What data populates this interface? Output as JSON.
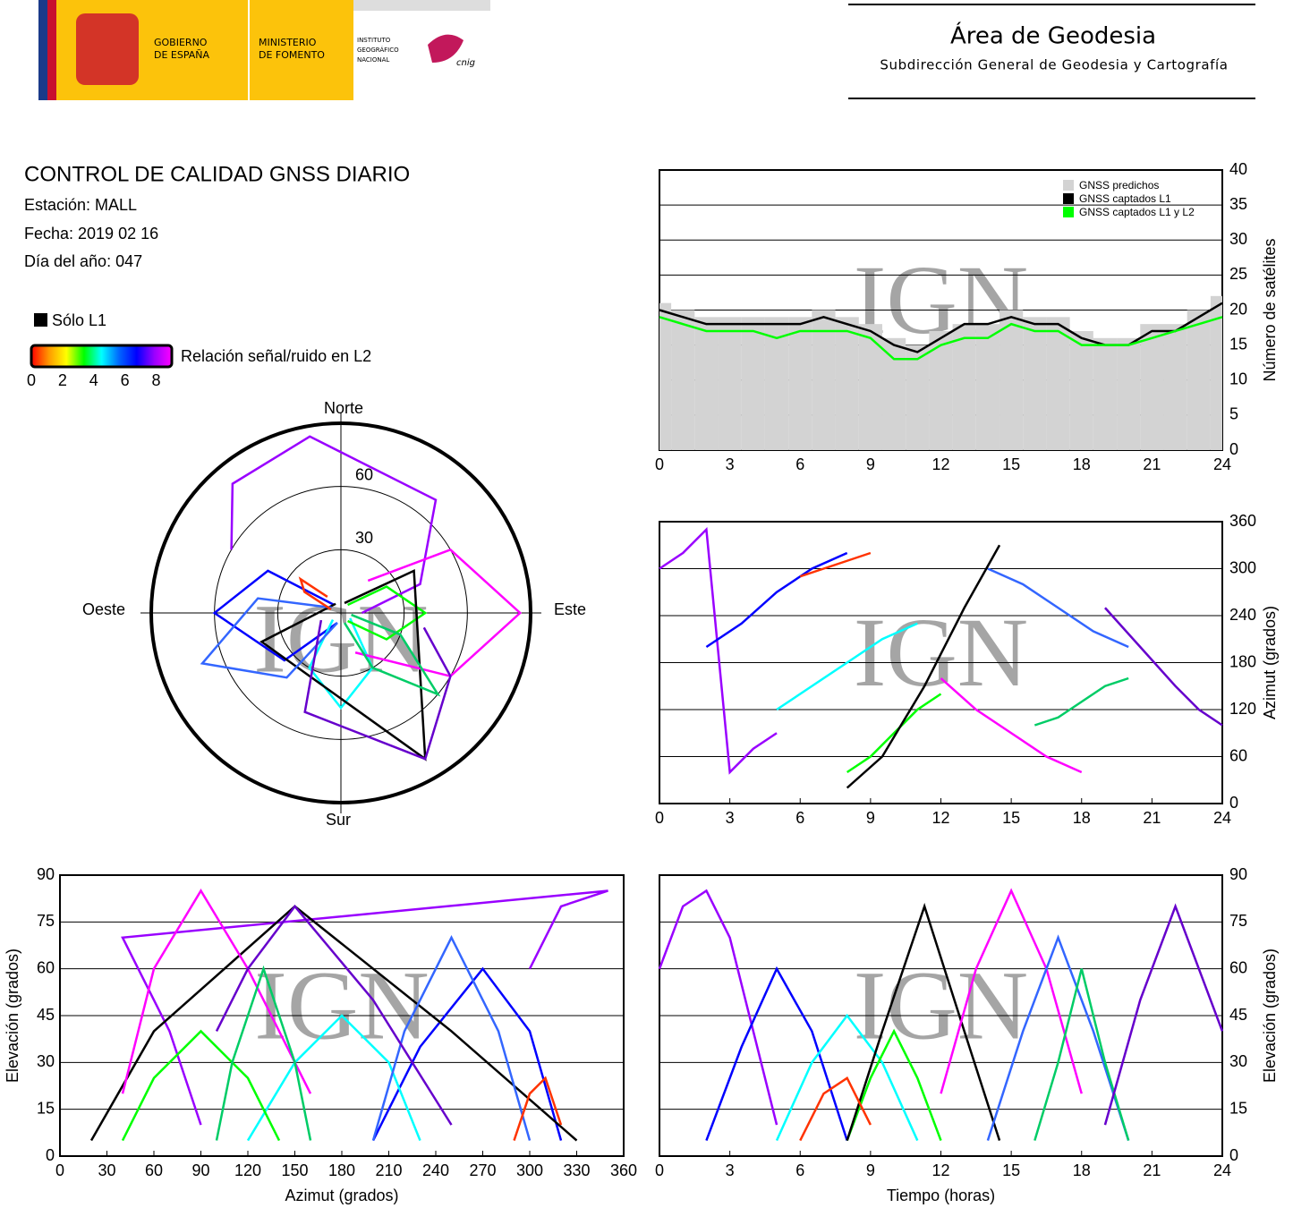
{
  "header": {
    "gov_line1": "GOBIERNO",
    "gov_line2": "DE ESPAÑA",
    "min_line1": "MINISTERIO",
    "min_line2": "DE FOMENTO",
    "ign_line1": "INSTITUTO",
    "ign_line2": "GEOGRÁFICO",
    "ign_line3": "NACIONAL",
    "ign_logo": "cnig",
    "area": "Área de Geodesia",
    "subdireccion": "Subdirección General de Geodesia y Cartografía"
  },
  "info": {
    "title": "CONTROL DE CALIDAD GNSS DIARIO",
    "station": "Estación: MALL",
    "date": "Fecha: 2019 02 16",
    "doy": "Día del año: 047"
  },
  "legend": {
    "l1_only": "Sólo L1",
    "l1_only_color": "#000000",
    "colorbar_label": "Relación señal/ruido en L2",
    "colorbar_range": [
      0,
      9
    ],
    "colorbar_ticks": [
      0,
      2,
      4,
      6,
      8
    ],
    "colorbar_colors": [
      "#ff0000",
      "#ff9900",
      "#ffff00",
      "#00ff00",
      "#00ffff",
      "#0066ff",
      "#0000ff",
      "#9900ff",
      "#ff00ff"
    ]
  },
  "watermark": "IGN",
  "satellite_passes": [
    {
      "color": "#9900ff",
      "t": [
        0,
        1,
        2,
        3,
        4,
        5
      ],
      "az": [
        300,
        320,
        350,
        40,
        70,
        90
      ],
      "el": [
        60,
        80,
        85,
        70,
        40,
        10
      ]
    },
    {
      "color": "#0000ff",
      "t": [
        2,
        3.5,
        5,
        6.5,
        8
      ],
      "az": [
        200,
        230,
        270,
        300,
        320
      ],
      "el": [
        5,
        35,
        60,
        40,
        5
      ]
    },
    {
      "color": "#00ffff",
      "t": [
        5,
        6.5,
        8,
        9.5,
        11
      ],
      "az": [
        120,
        150,
        180,
        210,
        230
      ],
      "el": [
        5,
        30,
        45,
        30,
        5
      ]
    },
    {
      "color": "#00ff00",
      "t": [
        8,
        9,
        10,
        11,
        12
      ],
      "az": [
        40,
        60,
        90,
        120,
        140
      ],
      "el": [
        5,
        25,
        40,
        25,
        5
      ]
    },
    {
      "color": "#000000",
      "t": [
        8,
        9.5,
        11.3,
        13,
        14.5
      ],
      "az": [
        20,
        60,
        150,
        250,
        330
      ],
      "el": [
        5,
        40,
        80,
        40,
        5
      ]
    },
    {
      "color": "#ff00ff",
      "t": [
        12,
        13.5,
        15,
        16.5,
        18
      ],
      "az": [
        160,
        120,
        90,
        60,
        40
      ],
      "el": [
        20,
        60,
        85,
        60,
        20
      ]
    },
    {
      "color": "#3366ff",
      "t": [
        14,
        15.5,
        17,
        18.5,
        20
      ],
      "az": [
        300,
        280,
        250,
        220,
        200
      ],
      "el": [
        5,
        40,
        70,
        40,
        5
      ]
    },
    {
      "color": "#00cc66",
      "t": [
        16,
        17,
        18,
        19,
        20
      ],
      "az": [
        100,
        110,
        130,
        150,
        160
      ],
      "el": [
        5,
        30,
        60,
        30,
        5
      ]
    },
    {
      "color": "#6600cc",
      "t": [
        19,
        20.5,
        22,
        23,
        24
      ],
      "az": [
        250,
        200,
        150,
        120,
        100
      ],
      "el": [
        10,
        50,
        80,
        60,
        40
      ]
    },
    {
      "color": "#ff3300",
      "t": [
        6,
        7,
        8,
        9
      ],
      "az": [
        290,
        300,
        310,
        320
      ],
      "el": [
        5,
        20,
        25,
        10
      ]
    }
  ],
  "chart_data": [
    {
      "type": "count",
      "ylabel": "Número de satélites",
      "xlim": [
        0,
        24
      ],
      "xticks": [
        0,
        3,
        6,
        9,
        12,
        15,
        18,
        21,
        24
      ],
      "ylim": [
        0,
        40
      ],
      "yticks": [
        0,
        5,
        10,
        15,
        20,
        25,
        30,
        35,
        40
      ],
      "grid": "y",
      "legend": "top-right",
      "x": [
        0,
        1,
        2,
        3,
        4,
        5,
        6,
        7,
        8,
        9,
        10,
        11,
        12,
        13,
        14,
        15,
        16,
        17,
        18,
        19,
        20,
        21,
        22,
        23,
        24
      ],
      "series": [
        {
          "name": "GNSS predichos",
          "color": "#d3d3d3",
          "values": [
            21,
            20,
            19,
            19,
            19,
            19,
            19,
            20,
            19,
            18,
            16,
            15,
            17,
            18,
            18,
            20,
            19,
            19,
            17,
            16,
            16,
            18,
            18,
            20,
            22
          ]
        },
        {
          "name": "GNSS captados L1",
          "color": "#000000",
          "values": [
            20,
            19,
            18,
            18,
            18,
            18,
            18,
            19,
            18,
            17,
            15,
            14,
            16,
            18,
            18,
            19,
            18,
            18,
            16,
            15,
            15,
            17,
            17,
            19,
            21
          ]
        },
        {
          "name": "GNSS captados L1 y L2",
          "color": "#00ff00",
          "values": [
            19,
            18,
            17,
            17,
            17,
            16,
            17,
            17,
            17,
            16,
            13,
            13,
            15,
            16,
            16,
            18,
            17,
            17,
            15,
            15,
            15,
            16,
            17,
            18,
            19
          ]
        }
      ]
    },
    {
      "type": "skyplot",
      "north": "Norte",
      "south": "Sur",
      "east": "Este",
      "west": "Oeste",
      "rlim": [
        90,
        0
      ],
      "rings": [
        30,
        60
      ]
    },
    {
      "type": "azimuth-time",
      "ylabel": "Azimut (grados)",
      "xlim": [
        0,
        24
      ],
      "xticks": [
        0,
        3,
        6,
        9,
        12,
        15,
        18,
        21,
        24
      ],
      "ylim": [
        0,
        360
      ],
      "yticks": [
        0,
        60,
        120,
        180,
        240,
        300,
        360
      ],
      "grid": "y"
    },
    {
      "type": "elevation-azimuth",
      "xlabel": "Azimut (grados)",
      "ylabel": "Elevación (grados)",
      "xlim": [
        0,
        360
      ],
      "xticks": [
        0,
        30,
        60,
        90,
        120,
        150,
        180,
        210,
        240,
        270,
        300,
        330,
        360
      ],
      "ylim": [
        0,
        90
      ],
      "yticks": [
        0,
        15,
        30,
        45,
        60,
        75,
        90
      ],
      "grid": "y"
    },
    {
      "type": "elevation-time",
      "xlabel": "Tiempo (horas)",
      "ylabel": "Elevación (grados)",
      "xlim": [
        0,
        24
      ],
      "xticks": [
        0,
        3,
        6,
        9,
        12,
        15,
        18,
        21,
        24
      ],
      "ylim": [
        0,
        90
      ],
      "yticks": [
        0,
        15,
        30,
        45,
        60,
        75,
        90
      ],
      "grid": "y"
    }
  ]
}
